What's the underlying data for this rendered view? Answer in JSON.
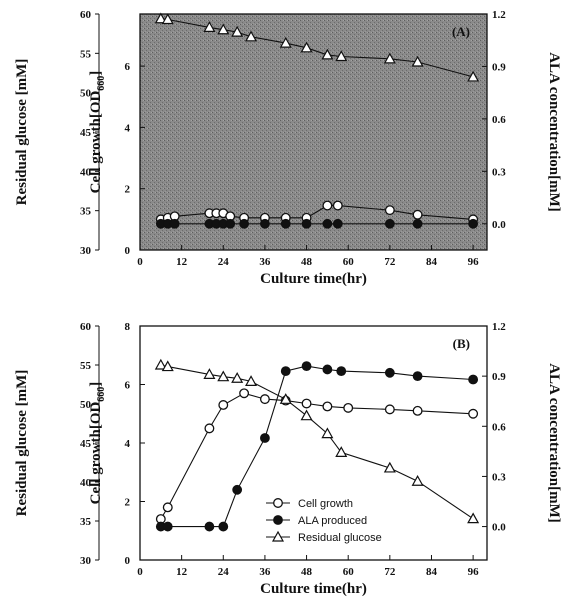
{
  "chart_data": [
    {
      "panel_label": "(A)",
      "type": "line",
      "xlabel": "Culture time(hr)",
      "ylabel_outer": "Residual glucose [mM]",
      "ylabel_inner": "Cell growth[OD",
      "ylabel_inner_sub": "660",
      "ylabel_inner_close": "]",
      "ylabel_right": "ALA concentration[mM]",
      "x_ticks": [
        "0",
        "12",
        "24",
        "36",
        "48",
        "60",
        "72",
        "84",
        "96"
      ],
      "y_outer_ticks": [
        "30",
        "35",
        "40",
        "45",
        "50",
        "55",
        "60"
      ],
      "y_inner_ticks": [
        "0",
        "2",
        "4",
        "6"
      ],
      "y_right_ticks": [
        "0.0",
        "0.3",
        "0.6",
        "0.9",
        "1.2"
      ],
      "xlim": [
        0,
        100
      ],
      "y_outer_lim": [
        30,
        60
      ],
      "y_inner_lim": [
        0,
        7.7
      ],
      "y_right_lim": [
        -0.15,
        1.2
      ],
      "background": "shaded",
      "legend": null,
      "series": [
        {
          "axis": "inner",
          "marker": "open-circle",
          "x": [
            6,
            8,
            10,
            20,
            22,
            24,
            26,
            30,
            36,
            42,
            48,
            54,
            57,
            72,
            80,
            96
          ],
          "y": [
            1.0,
            1.05,
            1.1,
            1.2,
            1.2,
            1.2,
            1.1,
            1.05,
            1.05,
            1.05,
            1.05,
            1.45,
            1.45,
            1.3,
            1.15,
            1.0
          ]
        },
        {
          "axis": "right",
          "marker": "filled-circle",
          "x": [
            6,
            8,
            10,
            20,
            22,
            24,
            26,
            30,
            36,
            42,
            48,
            54,
            57,
            72,
            80,
            96
          ],
          "y": [
            0.0,
            0.0,
            0.0,
            0.0,
            0.0,
            0.0,
            0.0,
            0.0,
            0.0,
            0.0,
            0.0,
            0.0,
            0.0,
            0.0,
            0.0,
            0.0
          ]
        },
        {
          "axis": "outer",
          "marker": "open-triangle",
          "x": [
            6,
            8,
            20,
            24,
            28,
            32,
            42,
            48,
            54,
            58,
            72,
            80,
            96
          ],
          "y": [
            59.4,
            59.3,
            58.3,
            58.0,
            57.7,
            57.1,
            56.3,
            55.7,
            54.8,
            54.6,
            54.3,
            53.9,
            52.0
          ]
        }
      ]
    },
    {
      "panel_label": "(B)",
      "type": "line",
      "xlabel": "Culture time(hr)",
      "ylabel_outer": "Residual glucose [mM]",
      "ylabel_inner": "Cell growth[OD",
      "ylabel_inner_sub": "660",
      "ylabel_inner_close": "]",
      "ylabel_right": "ALA concentration[mM]",
      "x_ticks": [
        "0",
        "12",
        "24",
        "36",
        "48",
        "60",
        "72",
        "84",
        "96"
      ],
      "y_outer_ticks": [
        "30",
        "35",
        "40",
        "45",
        "50",
        "55",
        "60"
      ],
      "y_inner_ticks": [
        "0",
        "2",
        "4",
        "6",
        "8"
      ],
      "y_right_ticks": [
        "0.0",
        "0.3",
        "0.6",
        "0.9",
        "1.2"
      ],
      "xlim": [
        0,
        100
      ],
      "y_outer_lim": [
        30,
        60
      ],
      "y_inner_lim": [
        0,
        8
      ],
      "y_right_lim": [
        -0.2,
        1.2
      ],
      "background": "white",
      "legend": {
        "position": "bottom-center",
        "entries": [
          {
            "label": "Cell growth",
            "marker": "open-circle"
          },
          {
            "label": "ALA produced",
            "marker": "filled-circle"
          },
          {
            "label": "Residual glucose",
            "marker": "open-triangle"
          }
        ]
      },
      "series": [
        {
          "axis": "inner",
          "marker": "open-circle",
          "x": [
            6,
            8,
            20,
            24,
            30,
            36,
            42,
            48,
            54,
            60,
            72,
            80,
            96
          ],
          "y": [
            1.4,
            1.8,
            4.5,
            5.3,
            5.7,
            5.5,
            5.45,
            5.35,
            5.25,
            5.2,
            5.15,
            5.1,
            5.0
          ]
        },
        {
          "axis": "right",
          "marker": "filled-circle",
          "x": [
            6,
            8,
            20,
            24,
            28,
            36,
            42,
            48,
            54,
            58,
            72,
            80,
            96
          ],
          "y": [
            0.0,
            0.0,
            0.0,
            0.0,
            0.22,
            0.53,
            0.93,
            0.96,
            0.94,
            0.93,
            0.92,
            0.9,
            0.88
          ]
        },
        {
          "axis": "outer",
          "marker": "open-triangle",
          "x": [
            6,
            8,
            20,
            24,
            28,
            32,
            42,
            48,
            54,
            58,
            72,
            80,
            96
          ],
          "y": [
            55.0,
            54.8,
            53.8,
            53.5,
            53.3,
            52.9,
            50.6,
            48.5,
            46.2,
            43.8,
            41.8,
            40.1,
            35.3
          ]
        }
      ]
    }
  ]
}
